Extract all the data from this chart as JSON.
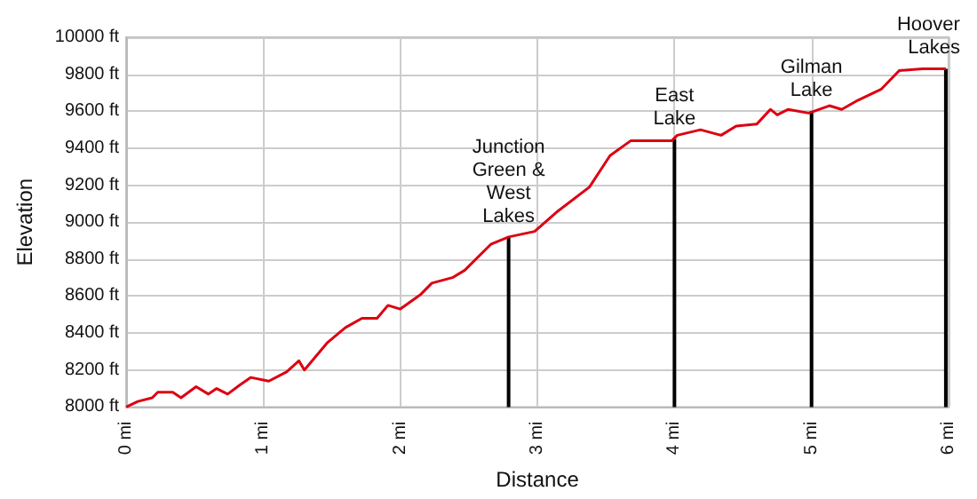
{
  "chart_data": {
    "type": "line",
    "xlabel": "Distance",
    "ylabel": "Elevation",
    "series": [
      {
        "color": "#dd0011",
        "x": [
          0,
          0.085,
          0.19,
          0.23,
          0.34,
          0.4,
          0.51,
          0.6,
          0.66,
          0.74,
          0.83,
          0.91,
          1.04,
          1.17,
          1.26,
          1.3,
          1.47,
          1.6,
          1.72,
          1.83,
          1.91,
          2.0,
          2.15,
          2.23,
          2.38,
          2.47,
          2.66,
          2.79,
          2.98,
          3.15,
          3.38,
          3.53,
          3.68,
          3.98,
          4.02,
          4.19,
          4.34,
          4.45,
          4.6,
          4.7,
          4.75,
          4.83,
          4.98,
          5.13,
          5.22,
          5.34,
          5.51,
          5.64,
          5.81,
          5.98
        ],
        "values": [
          8000,
          8030,
          8050,
          8080,
          8080,
          8050,
          8110,
          8070,
          8100,
          8070,
          8120,
          8160,
          8140,
          8190,
          8250,
          8200,
          8350,
          8430,
          8480,
          8480,
          8550,
          8530,
          8610,
          8670,
          8700,
          8740,
          8880,
          8920,
          8950,
          9060,
          9190,
          9360,
          9440,
          9440,
          9470,
          9500,
          9470,
          9520,
          9530,
          9610,
          9580,
          9610,
          9590,
          9630,
          9610,
          9660,
          9720,
          9820,
          9830,
          9830
        ]
      }
    ],
    "annotations": [
      {
        "text": "Junction\nGreen &\nWest\nLakes",
        "x": 2.79,
        "y": 8920
      },
      {
        "text": "East\nLake",
        "x": 4.0,
        "y": 9450
      },
      {
        "text": "Gilman\nLake",
        "x": 5.0,
        "y": 9600
      },
      {
        "text": "Hoover\nLakes",
        "x": 5.98,
        "y": 9830
      }
    ],
    "xlim": [
      0,
      6
    ],
    "xticks": [
      {
        "value": 0,
        "label": "0 mi"
      },
      {
        "value": 1,
        "label": "1 mi"
      },
      {
        "value": 2,
        "label": "2 mi"
      },
      {
        "value": 3,
        "label": "3 mi"
      },
      {
        "value": 4,
        "label": "4 mi"
      },
      {
        "value": 5,
        "label": "5 mi"
      },
      {
        "value": 6,
        "label": "6 mi"
      }
    ],
    "ylim": [
      8000,
      10000
    ],
    "yticks": [
      {
        "value": 8000,
        "label": "8000 ft"
      },
      {
        "value": 8200,
        "label": "8200 ft"
      },
      {
        "value": 8400,
        "label": "8400 ft"
      },
      {
        "value": 8600,
        "label": "8600 ft"
      },
      {
        "value": 8800,
        "label": "8800 ft"
      },
      {
        "value": 9000,
        "label": "9000 ft"
      },
      {
        "value": 9200,
        "label": "9200 ft"
      },
      {
        "value": 9400,
        "label": "9400 ft"
      },
      {
        "value": 9600,
        "label": "9600 ft"
      },
      {
        "value": 9800,
        "label": "9800 ft"
      },
      {
        "value": 10000,
        "label": "10000 ft"
      }
    ],
    "grid": true,
    "marker": "none",
    "line_style": "solid"
  }
}
